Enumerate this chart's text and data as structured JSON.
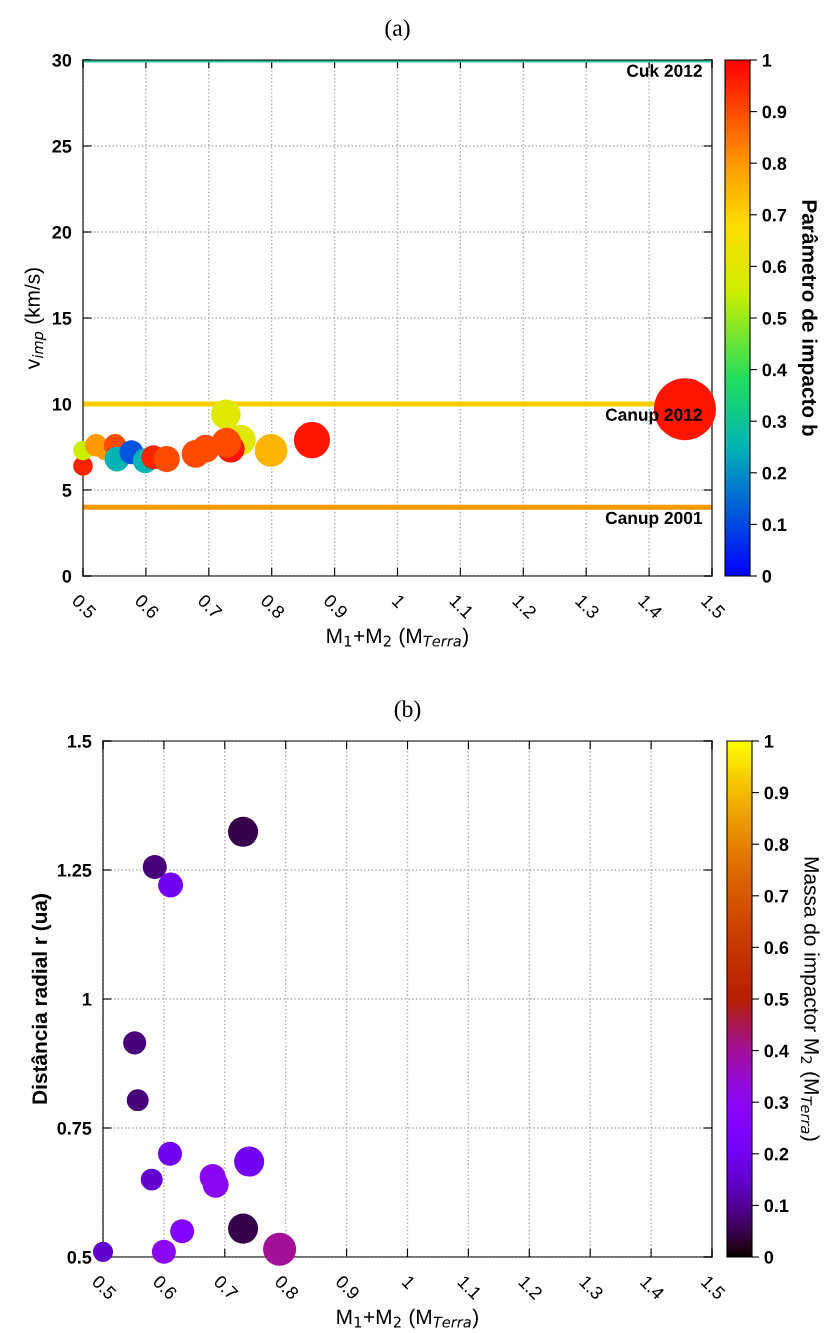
{
  "chart_data": [
    {
      "type": "bubble",
      "title": "(a)",
      "xlabel": "M$_{1}$+M$_{2}$ (M$_{Terra}$)",
      "ylabel": "v$_{imp}$ (km/s)",
      "clabel": "Parâmetro de impacto b",
      "x": [
        0.5,
        0.5,
        0.521,
        0.535,
        0.551,
        0.554,
        0.577,
        0.599,
        0.612,
        0.633,
        0.679,
        0.695,
        0.727,
        0.75,
        0.735,
        0.728,
        0.799,
        0.864,
        1.457
      ],
      "values": [
        6.4,
        7.3,
        7.6,
        7.3,
        7.6,
        6.8,
        7.2,
        6.7,
        6.9,
        6.8,
        7.1,
        7.4,
        9.4,
        7.9,
        7.4,
        7.75,
        7.3,
        7.9,
        9.7
      ],
      "cvalues": [
        0.95,
        0.55,
        0.8,
        0.8,
        0.9,
        0.25,
        0.12,
        0.25,
        0.95,
        0.9,
        0.9,
        0.9,
        0.6,
        0.6,
        0.97,
        0.9,
        0.75,
        0.97,
        0.97
      ],
      "sizes": [
        0.1,
        0.1,
        0.13,
        0.1,
        0.13,
        0.16,
        0.15,
        0.16,
        0.15,
        0.18,
        0.2,
        0.2,
        0.23,
        0.25,
        0.2,
        0.23,
        0.28,
        0.34,
        1
      ],
      "xlim": [
        0.5,
        1.5
      ],
      "xticks": [
        0.5,
        0.6,
        0.7,
        0.8,
        0.9,
        1,
        1.1,
        1.2,
        1.3,
        1.4,
        1.5
      ],
      "ylim": [
        0,
        30
      ],
      "yticks": [
        0,
        5,
        10,
        15,
        20,
        25,
        30
      ],
      "clim": [
        0,
        1
      ],
      "cticks": [
        0,
        0.1,
        0.2,
        0.3,
        0.4,
        0.5,
        0.6,
        0.7,
        0.8,
        0.9,
        1
      ],
      "ref_lines": [
        {
          "axis": "y",
          "value": 30,
          "label": "Cuk 2012",
          "color": "#2ec4a0"
        },
        {
          "axis": "y",
          "value": 10,
          "label": "Canup 2012",
          "color": "#ffcc00"
        },
        {
          "axis": "y",
          "value": 4,
          "label": "Canup 2001",
          "color": "#ff9900"
        }
      ],
      "grid": true,
      "marker": "circle",
      "legend": false
    },
    {
      "type": "bubble",
      "title": "(b)",
      "xlabel": "M$_{1}$+M$_{2}$ (M$_{Terra}$)",
      "ylabel": "Distância radial r (ua)",
      "clabel": "Massa do impactor M$_{2}$ (M$_{Terra}$)",
      "x": [
        0.73,
        0.585,
        0.611,
        0.552,
        0.557,
        0.61,
        0.58,
        0.68,
        0.685,
        0.74,
        0.63,
        0.73,
        0.5,
        0.6,
        0.79
      ],
      "values": [
        1.324,
        1.256,
        1.221,
        0.915,
        0.804,
        0.7,
        0.65,
        0.655,
        0.64,
        0.685,
        0.55,
        0.555,
        0.51,
        0.51,
        0.515
      ],
      "cvalues": [
        0.05,
        0.08,
        0.2,
        0.08,
        0.08,
        0.2,
        0.15,
        0.3,
        0.3,
        0.2,
        0.25,
        0.05,
        0.15,
        0.3,
        0.4
      ],
      "sizes": [
        0.83,
        0.53,
        0.57,
        0.49,
        0.44,
        0.53,
        0.44,
        0.62,
        0.62,
        0.83,
        0.53,
        0.83,
        0.37,
        0.53,
        1
      ],
      "xlim": [
        0.5,
        1.5
      ],
      "xticks": [
        0.5,
        0.6,
        0.7,
        0.8,
        0.9,
        1,
        1.1,
        1.2,
        1.3,
        1.4,
        1.5
      ],
      "ylim": [
        0.5,
        1.5
      ],
      "yticks": [
        0.5,
        0.75,
        1,
        1.25,
        1.5
      ],
      "clim": [
        0,
        1
      ],
      "cticks": [
        0,
        0.1,
        0.2,
        0.3,
        0.4,
        0.5,
        0.6,
        0.7,
        0.8,
        0.9,
        1
      ],
      "grid": true,
      "marker": "circle",
      "legend": false
    }
  ]
}
